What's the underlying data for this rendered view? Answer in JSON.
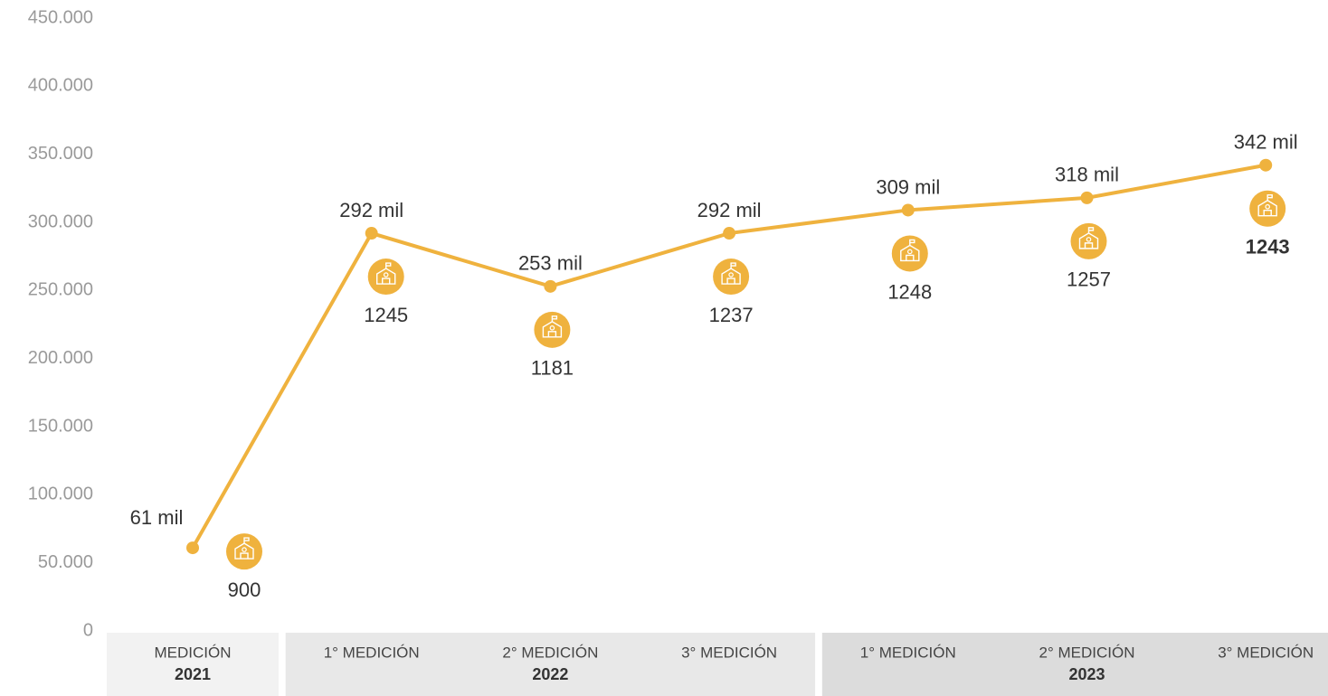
{
  "chart_data": {
    "type": "line",
    "groups": [
      {
        "label": "2021",
        "categories": [
          "MEDICIÓN"
        ]
      },
      {
        "label": "2022",
        "categories": [
          "1° MEDICIÓN",
          "2° MEDICIÓN",
          "3° MEDICIÓN"
        ]
      },
      {
        "label": "2023",
        "categories": [
          "1° MEDICIÓN",
          "2° MEDICIÓN",
          "3° MEDICIÓN"
        ]
      }
    ],
    "values": [
      61000,
      292000,
      253000,
      292000,
      309000,
      318000,
      342000
    ],
    "value_labels": [
      "61 mil",
      "292 mil",
      "253 mil",
      "292 mil",
      "309 mil",
      "318 mil",
      "342 mil"
    ],
    "schools": [
      900,
      1245,
      1181,
      1237,
      1248,
      1257,
      1243
    ],
    "color": "#efb23e",
    "group_colors": [
      "#f2f2f2",
      "#e8e8e8",
      "#dcdcdc"
    ],
    "ylim": [
      0,
      450000
    ],
    "yticks": [
      0,
      {
        "value": 50000,
        "label": "50.000"
      },
      {
        "value": 100000,
        "label": "100.000"
      },
      {
        "value": 150000,
        "label": "150.000"
      },
      {
        "value": 200000,
        "label": "200.000"
      },
      {
        "value": 250000,
        "label": "250.000"
      },
      {
        "value": 300000,
        "label": "300.000"
      },
      {
        "value": 350000,
        "label": "350.000"
      },
      {
        "value": 400000,
        "label": "400.000"
      },
      {
        "value": 450000,
        "label": "450.000"
      }
    ],
    "grid": false
  }
}
